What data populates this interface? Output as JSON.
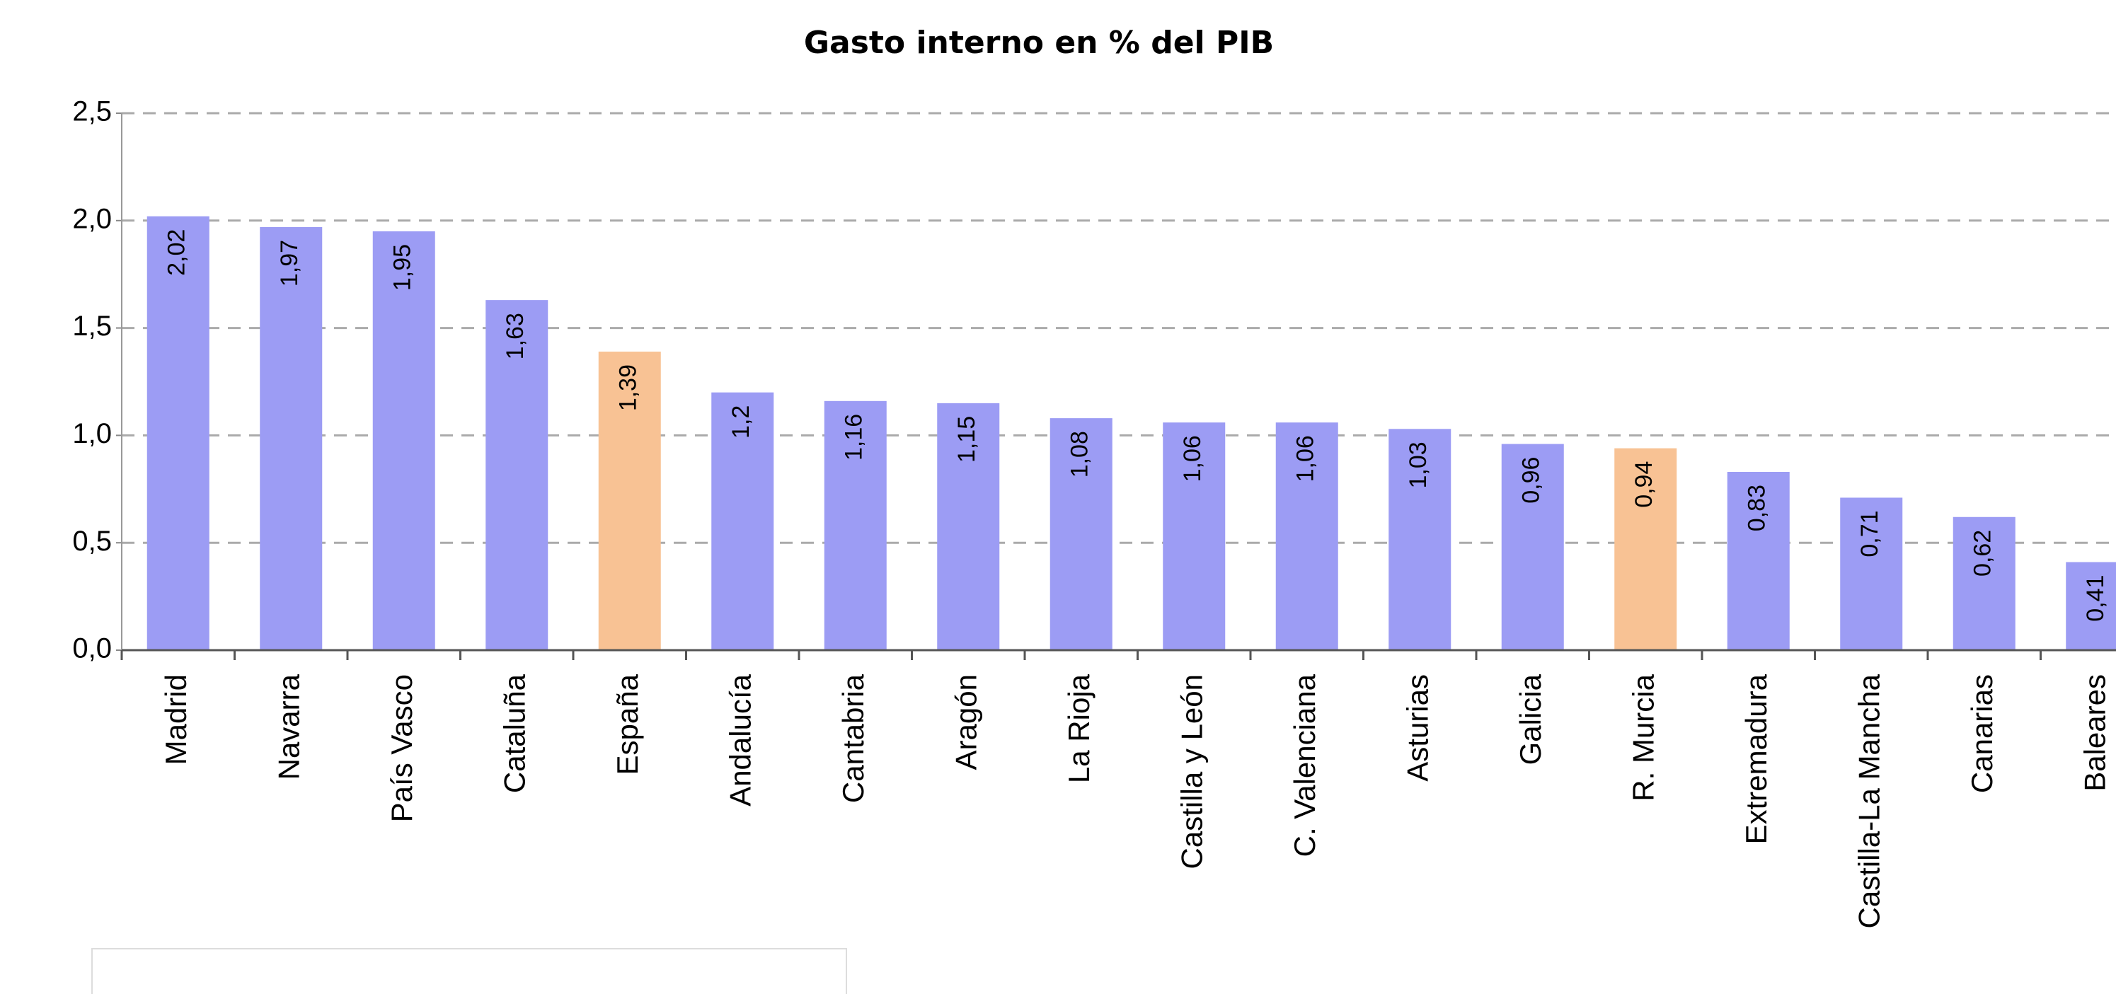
{
  "chart_data": {
    "type": "bar",
    "title": "Gasto interno en % del PIB",
    "categories": [
      "Madrid",
      "Navarra",
      "País Vasco",
      "Cataluña",
      "España",
      "Andalucía",
      "Cantabria",
      "Aragón",
      "La Rioja",
      "Castilla y León",
      "C. Valenciana",
      "Asturias",
      "Galicia",
      "R. Murcia",
      "Extremadura",
      "Castilla-La Mancha",
      "Canarias",
      "Baleares"
    ],
    "values": [
      2.02,
      1.97,
      1.95,
      1.63,
      1.39,
      1.2,
      1.16,
      1.15,
      1.08,
      1.06,
      1.06,
      1.03,
      0.96,
      0.94,
      0.83,
      0.71,
      0.62,
      0.41
    ],
    "value_labels": [
      "2,02",
      "1,97",
      "1,95",
      "1,63",
      "1,39",
      "1,2",
      "1,16",
      "1,15",
      "1,08",
      "1,06",
      "1,06",
      "1,03",
      "0,96",
      "0,94",
      "0,83",
      "0,71",
      "0,62",
      "0,41"
    ],
    "colors": [
      "#9c9cf4",
      "#9c9cf4",
      "#9c9cf4",
      "#9c9cf4",
      "#f8c294",
      "#9c9cf4",
      "#9c9cf4",
      "#9c9cf4",
      "#9c9cf4",
      "#9c9cf4",
      "#9c9cf4",
      "#9c9cf4",
      "#9c9cf4",
      "#f8c294",
      "#9c9cf4",
      "#9c9cf4",
      "#9c9cf4",
      "#9c9cf4"
    ],
    "ylim": [
      0,
      2.5
    ],
    "yticks": [
      {
        "value": 0,
        "label": "0,0"
      },
      {
        "value": 0.5,
        "label": "0,5"
      },
      {
        "value": 1,
        "label": "1,0"
      },
      {
        "value": 1.5,
        "label": "1,5"
      },
      {
        "value": 2,
        "label": "2,0"
      },
      {
        "value": 2.5,
        "label": "2,5"
      }
    ],
    "grid": true
  }
}
